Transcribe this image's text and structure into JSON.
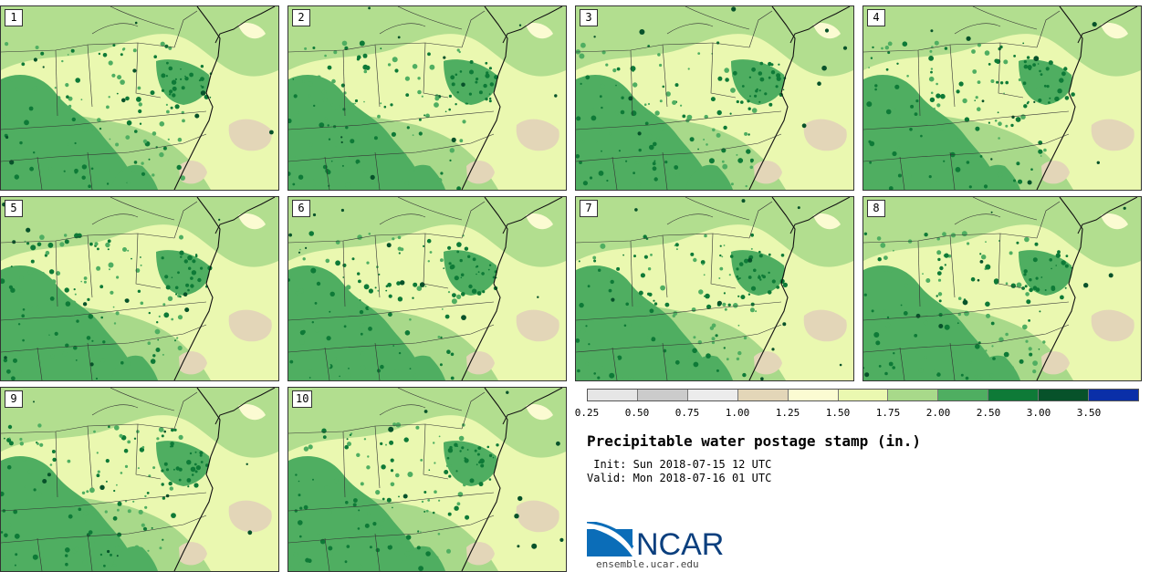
{
  "stamps": [
    {
      "label": "1"
    },
    {
      "label": "2"
    },
    {
      "label": "3"
    },
    {
      "label": "4"
    },
    {
      "label": "5"
    },
    {
      "label": "6"
    },
    {
      "label": "7"
    },
    {
      "label": "8"
    },
    {
      "label": "9"
    },
    {
      "label": "10"
    }
  ],
  "colorbar": {
    "ticks": [
      "0.25",
      "0.50",
      "0.75",
      "1.00",
      "1.25",
      "1.50",
      "1.75",
      "2.00",
      "2.50",
      "3.00",
      "3.50"
    ],
    "colors": [
      "#e6e6e6",
      "#cbcbcb",
      "#ececec",
      "#e3d6b8",
      "#fbfbd2",
      "#eaf8b0",
      "#a8d98a",
      "#4fae61",
      "#0e7a37",
      "#07522a",
      "#0a2fa8"
    ]
  },
  "title": "Precipitable water postage stamp (in.)",
  "init_line": " Init: Sun 2018-07-15 12 UTC",
  "valid_line": "Valid: Mon 2018-07-16 01 UTC",
  "logo": {
    "text": "NCAR",
    "url": "ensemble.ucar.edu"
  }
}
